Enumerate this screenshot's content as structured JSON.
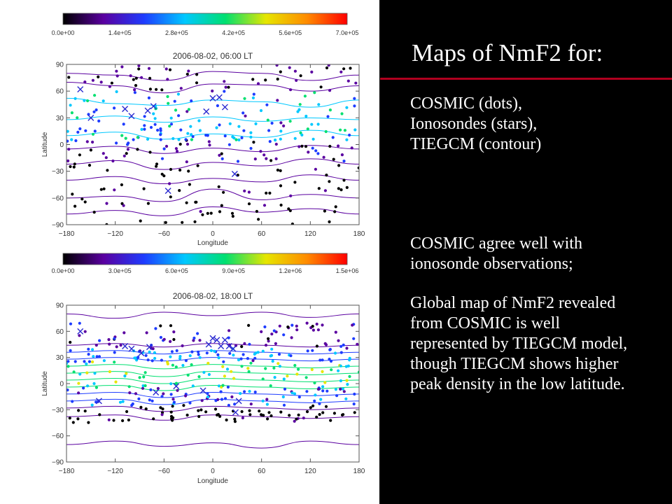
{
  "slide": {
    "title": "Maps of NmF2 for:",
    "legend_lines": [
      " COSMIC (dots),",
      "Ionosondes (stars),",
      "TIEGCM (contour)"
    ],
    "paragraph_agree": "COSMIC agree well with ionosonde observations;",
    "paragraph_global": "Global map of NmF2 revealed from COSMIC is well represented by TIEGCM model, though TIEGCM shows higher peak density in the low latitude."
  },
  "chart_data": [
    {
      "type": "scatter",
      "title": "2006-08-02, 06:00 LT",
      "xlabel": "Longitude",
      "ylabel": "Latitude",
      "xlim": [
        -180,
        180
      ],
      "ylim": [
        -90,
        90
      ],
      "xticks": [
        "−180",
        "−120",
        "−60",
        "0",
        "60",
        "120",
        "180"
      ],
      "yticks": [
        "90",
        "60",
        "30",
        "0",
        "−30",
        "−60",
        "−90"
      ],
      "colorbar": {
        "min": 0,
        "max": 700000,
        "ticks": [
          "0.0e+00",
          "1.4e+05",
          "2.8e+05",
          "4.2e+05",
          "5.6e+05",
          "7.0e+05"
        ]
      },
      "colors": [
        "#000000",
        "#5a00a0",
        "#1e3cff",
        "#00c8ff",
        "#00e070",
        "#e6e600",
        "#ff8c00",
        "#ff0000"
      ],
      "bands": [
        {
          "lat_min": 60,
          "lat_max": 90,
          "value_min": 20000,
          "value_max": 150000
        },
        {
          "lat_min": 20,
          "lat_max": 60,
          "value_min": 150000,
          "value_max": 420000
        },
        {
          "lat_min": 5,
          "lat_max": 20,
          "value_min": 200000,
          "value_max": 380000
        },
        {
          "lat_min": -20,
          "lat_max": 5,
          "value_min": 50000,
          "value_max": 220000
        },
        {
          "lat_min": -90,
          "lat_max": -20,
          "value_min": 10000,
          "value_max": 100000
        }
      ],
      "ionosondes": [
        {
          "lon": -163,
          "lat": 62
        },
        {
          "lon": -108,
          "lat": 40
        },
        {
          "lon": -100,
          "lat": 32
        },
        {
          "lon": -80,
          "lat": 38
        },
        {
          "lon": -73,
          "lat": 43
        },
        {
          "lon": -8,
          "lat": 37
        },
        {
          "lon": 0,
          "lat": 52
        },
        {
          "lon": 8,
          "lat": 53
        },
        {
          "lon": 15,
          "lat": 42
        },
        {
          "lon": 27,
          "lat": -33
        },
        {
          "lon": -55,
          "lat": -52
        },
        {
          "lon": -150,
          "lat": 30
        }
      ],
      "contours": [
        [
          [
            -180,
            80
          ],
          [
            -120,
            78
          ],
          [
            -60,
            72
          ],
          [
            0,
            82
          ],
          [
            60,
            80
          ],
          [
            120,
            72
          ],
          [
            180,
            78
          ]
        ],
        [
          [
            -180,
            70
          ],
          [
            -120,
            66
          ],
          [
            -60,
            58
          ],
          [
            0,
            68
          ],
          [
            60,
            67
          ],
          [
            120,
            60
          ],
          [
            180,
            66
          ]
        ],
        [
          [
            -180,
            52
          ],
          [
            -120,
            46
          ],
          [
            -60,
            44
          ],
          [
            0,
            50
          ],
          [
            60,
            48
          ],
          [
            120,
            42
          ],
          [
            180,
            50
          ]
        ],
        [
          [
            -180,
            28
          ],
          [
            -120,
            32
          ],
          [
            -60,
            25
          ],
          [
            0,
            31
          ],
          [
            60,
            26
          ],
          [
            120,
            30
          ],
          [
            180,
            28
          ]
        ],
        [
          [
            -180,
            10
          ],
          [
            -120,
            14
          ],
          [
            -60,
            6
          ],
          [
            0,
            12
          ],
          [
            60,
            8
          ],
          [
            120,
            16
          ],
          [
            180,
            10
          ]
        ],
        [
          [
            -180,
            -5
          ],
          [
            -120,
            -2
          ],
          [
            -60,
            -10
          ],
          [
            0,
            -4
          ],
          [
            60,
            -8
          ],
          [
            120,
            -1
          ],
          [
            180,
            -5
          ]
        ],
        [
          [
            -180,
            -22
          ],
          [
            -120,
            -18
          ],
          [
            -60,
            -28
          ],
          [
            0,
            -20
          ],
          [
            60,
            -24
          ],
          [
            120,
            -16
          ],
          [
            180,
            -22
          ]
        ],
        [
          [
            -180,
            -40
          ],
          [
            -120,
            -36
          ],
          [
            -60,
            -44
          ],
          [
            0,
            -38
          ],
          [
            60,
            -42
          ],
          [
            120,
            -34
          ],
          [
            180,
            -40
          ]
        ],
        [
          [
            -180,
            -60
          ],
          [
            -120,
            -58
          ],
          [
            -60,
            -64
          ],
          [
            0,
            -50
          ],
          [
            60,
            -62
          ],
          [
            120,
            -56
          ],
          [
            180,
            -60
          ]
        ],
        [
          [
            -180,
            -78
          ],
          [
            -120,
            -74
          ],
          [
            -60,
            -80
          ],
          [
            0,
            -70
          ],
          [
            60,
            -76
          ],
          [
            120,
            -72
          ],
          [
            180,
            -78
          ]
        ]
      ]
    },
    {
      "type": "scatter",
      "title": "2006-08-02, 18:00 LT",
      "xlabel": "Longitude",
      "ylabel": "Latitude",
      "xlim": [
        -180,
        180
      ],
      "ylim": [
        -90,
        90
      ],
      "xticks": [
        "−180",
        "−120",
        "−60",
        "0",
        "60",
        "120",
        "180"
      ],
      "yticks": [
        "90",
        "60",
        "30",
        "0",
        "−30",
        "−60",
        "−90"
      ],
      "colorbar": {
        "min": 0,
        "max": 1500000,
        "ticks": [
          "0.0e+00",
          "3.0e+05",
          "6.0e+05",
          "9.0e+05",
          "1.2e+06",
          "1.5e+06"
        ]
      },
      "colors": [
        "#000000",
        "#5a00a0",
        "#1e3cff",
        "#00c8ff",
        "#00e070",
        "#e6e600",
        "#ff8c00",
        "#ff0000"
      ],
      "bands": [
        {
          "lat_min": 40,
          "lat_max": 70,
          "value_min": 150000,
          "value_max": 450000
        },
        {
          "lat_min": 25,
          "lat_max": 40,
          "value_min": 350000,
          "value_max": 700000
        },
        {
          "lat_min": -5,
          "lat_max": 25,
          "value_min": 550000,
          "value_max": 1100000
        },
        {
          "lat_min": -25,
          "lat_max": -5,
          "value_min": 250000,
          "value_max": 650000
        },
        {
          "lat_min": -45,
          "lat_max": -25,
          "value_min": 20000,
          "value_max": 200000
        }
      ],
      "ionosondes": [
        {
          "lon": -163,
          "lat": 60
        },
        {
          "lon": -108,
          "lat": 43
        },
        {
          "lon": -100,
          "lat": 40
        },
        {
          "lon": -88,
          "lat": 35
        },
        {
          "lon": -78,
          "lat": 42
        },
        {
          "lon": -5,
          "lat": 45
        },
        {
          "lon": 0,
          "lat": 52
        },
        {
          "lon": 5,
          "lat": 50
        },
        {
          "lon": 10,
          "lat": 43
        },
        {
          "lon": 15,
          "lat": 50
        },
        {
          "lon": 20,
          "lat": 43
        },
        {
          "lon": 25,
          "lat": 40
        },
        {
          "lon": -12,
          "lat": -8
        },
        {
          "lon": -45,
          "lat": -3
        },
        {
          "lon": 32,
          "lat": -20
        },
        {
          "lon": 28,
          "lat": -33
        },
        {
          "lon": -70,
          "lat": -10
        },
        {
          "lon": -140,
          "lat": -20
        }
      ],
      "contours": [
        [
          [
            -180,
            80
          ],
          [
            -120,
            75
          ],
          [
            -60,
            82
          ],
          [
            0,
            78
          ],
          [
            60,
            82
          ],
          [
            120,
            76
          ],
          [
            180,
            80
          ]
        ],
        [
          [
            -180,
            44
          ],
          [
            -120,
            46
          ],
          [
            -60,
            42
          ],
          [
            0,
            46
          ],
          [
            60,
            44
          ],
          [
            120,
            42
          ],
          [
            180,
            44
          ]
        ],
        [
          [
            -180,
            36
          ],
          [
            -120,
            38
          ],
          [
            -60,
            34
          ],
          [
            0,
            38
          ],
          [
            60,
            36
          ],
          [
            120,
            34
          ],
          [
            180,
            36
          ]
        ],
        [
          [
            -180,
            28
          ],
          [
            -120,
            30
          ],
          [
            -60,
            26
          ],
          [
            0,
            30
          ],
          [
            60,
            28
          ],
          [
            120,
            26
          ],
          [
            180,
            28
          ]
        ],
        [
          [
            -180,
            20
          ],
          [
            -120,
            22
          ],
          [
            -60,
            17
          ],
          [
            0,
            22
          ],
          [
            60,
            20
          ],
          [
            120,
            18
          ],
          [
            180,
            20
          ]
        ],
        [
          [
            -180,
            12
          ],
          [
            -120,
            14
          ],
          [
            -60,
            8
          ],
          [
            0,
            14
          ],
          [
            60,
            12
          ],
          [
            120,
            10
          ],
          [
            180,
            12
          ]
        ],
        [
          [
            -180,
            4
          ],
          [
            -120,
            6
          ],
          [
            -60,
            0
          ],
          [
            0,
            6
          ],
          [
            60,
            4
          ],
          [
            120,
            2
          ],
          [
            180,
            4
          ]
        ],
        [
          [
            -180,
            -4
          ],
          [
            -120,
            -2
          ],
          [
            -60,
            -8
          ],
          [
            0,
            -2
          ],
          [
            60,
            -4
          ],
          [
            120,
            -6
          ],
          [
            180,
            -4
          ]
        ],
        [
          [
            -180,
            -12
          ],
          [
            -120,
            -10
          ],
          [
            -60,
            -16
          ],
          [
            0,
            -10
          ],
          [
            60,
            -12
          ],
          [
            120,
            -14
          ],
          [
            180,
            -12
          ]
        ],
        [
          [
            -180,
            -20
          ],
          [
            -120,
            -18
          ],
          [
            -60,
            -24
          ],
          [
            0,
            -18
          ],
          [
            60,
            -20
          ],
          [
            120,
            -22
          ],
          [
            180,
            -20
          ]
        ],
        [
          [
            -180,
            -28
          ],
          [
            -120,
            -26
          ],
          [
            -60,
            -32
          ],
          [
            0,
            -26
          ],
          [
            60,
            -28
          ],
          [
            120,
            -30
          ],
          [
            180,
            -28
          ]
        ],
        [
          [
            -180,
            -38
          ],
          [
            -120,
            -36
          ],
          [
            -60,
            -42
          ],
          [
            0,
            -36
          ],
          [
            60,
            -38
          ],
          [
            120,
            -40
          ],
          [
            180,
            -38
          ]
        ],
        [
          [
            -180,
            -70
          ],
          [
            -120,
            -66
          ],
          [
            -60,
            -72
          ],
          [
            0,
            -68
          ],
          [
            60,
            -74
          ],
          [
            120,
            -66
          ],
          [
            180,
            -70
          ]
        ]
      ]
    }
  ]
}
